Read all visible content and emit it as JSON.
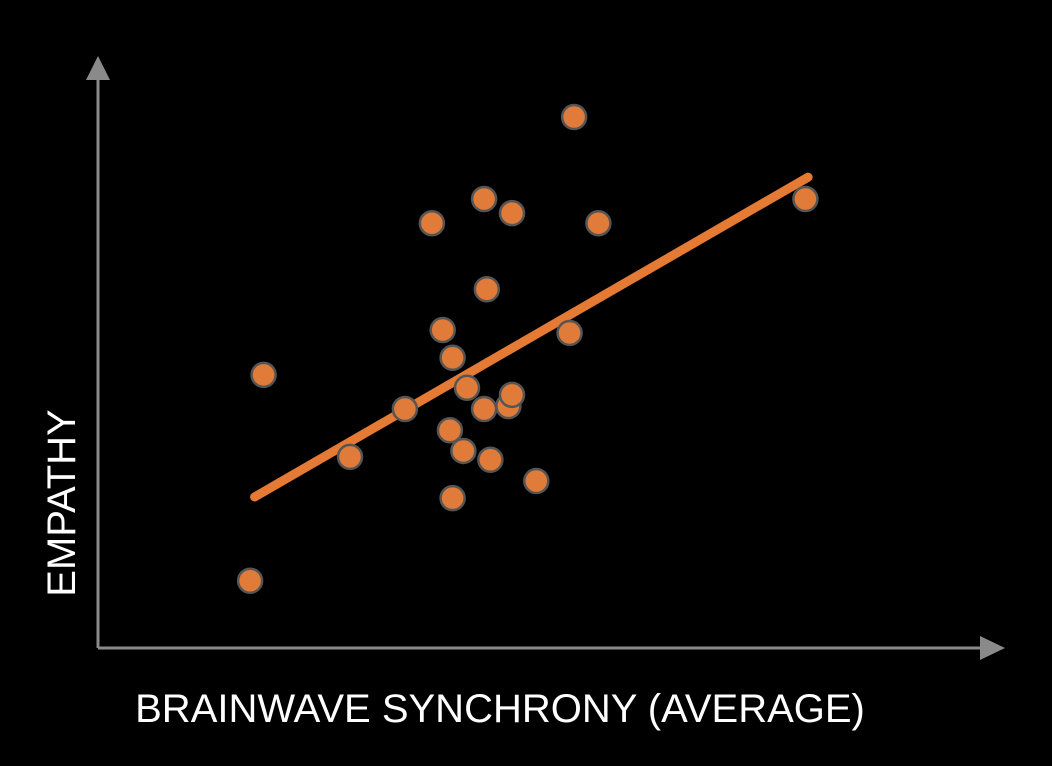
{
  "chart_data": {
    "type": "scatter",
    "x_label": "BRAINWAVE SYNCHRONY (AVERAGE)",
    "y_label": "EMPATHY",
    "xlim": [
      0,
      100
    ],
    "ylim": [
      0,
      100
    ],
    "series": [
      {
        "color": "#e07b39",
        "x": [
          18.4,
          16.9,
          28.0,
          34.1,
          37.1,
          38.3,
          39.4,
          39.1,
          39.4,
          40.6,
          41.0,
          42.9,
          43.2,
          42.9,
          43.6,
          45.6,
          46.0,
          46.0,
          48.7,
          52.4,
          52.9,
          55.6,
          78.6
        ],
        "values": [
          46.3,
          11.4,
          32.4,
          40.5,
          72.0,
          53.9,
          49.2,
          36.9,
          25.4,
          33.4,
          44.1,
          76.1,
          60.8,
          40.5,
          31.9,
          41.0,
          42.9,
          73.7,
          28.3,
          53.4,
          90.0,
          72.0,
          76.1
        ]
      }
    ],
    "trendline": {
      "color": "#e57a35",
      "x": [
        17.4,
        78.9
      ],
      "values": [
        25.6,
        79.8
      ]
    }
  }
}
